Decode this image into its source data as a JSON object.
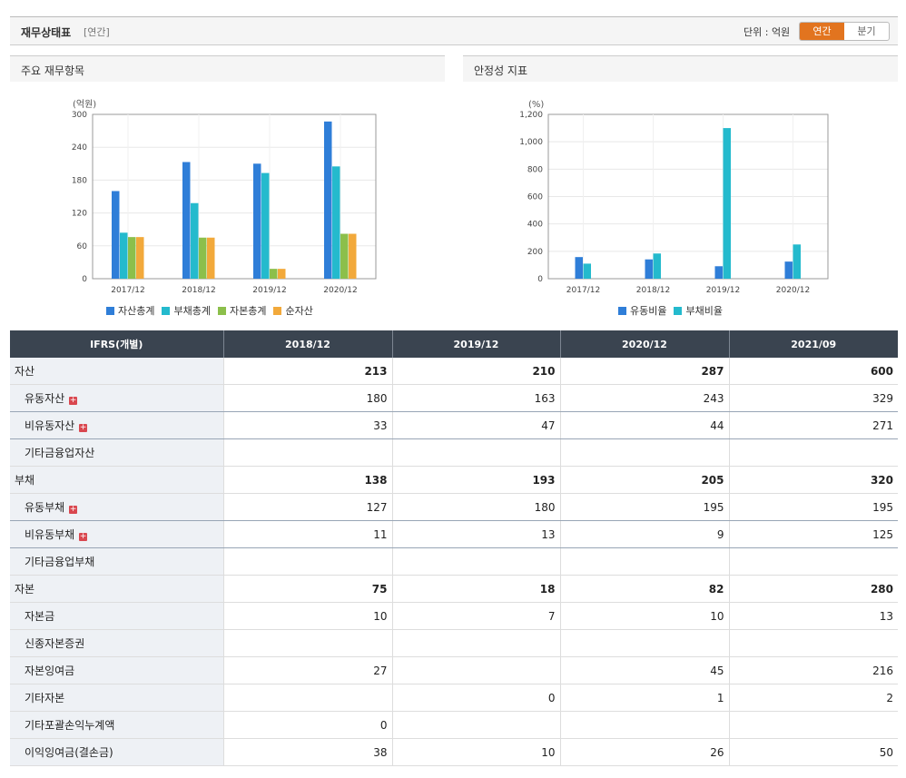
{
  "header": {
    "title": "재무상태표",
    "period": "[연간]",
    "unit_label": "단위 : 억원",
    "toggle_annual": "연간",
    "toggle_quarter": "분기"
  },
  "left_panel": {
    "title": "주요 재무항목"
  },
  "right_panel": {
    "title": "안정성 지표"
  },
  "colors": {
    "blue": "#2f7ed8",
    "cyan": "#24bacd",
    "green": "#8cbf4b",
    "orange": "#f2a93b"
  },
  "chart_data": [
    {
      "type": "bar",
      "unit_label": "(억원)",
      "categories": [
        "2017/12",
        "2018/12",
        "2019/12",
        "2020/12"
      ],
      "ylim": [
        0,
        300
      ],
      "yticks": [
        0,
        60,
        120,
        180,
        240,
        300
      ],
      "grid": true,
      "legend_position": "bottom",
      "series": [
        {
          "name": "자산총계",
          "color": "#2f7ed8",
          "values": [
            160,
            213,
            210,
            287
          ]
        },
        {
          "name": "부채총계",
          "color": "#24bacd",
          "values": [
            84,
            138,
            193,
            205
          ]
        },
        {
          "name": "자본총계",
          "color": "#8cbf4b",
          "values": [
            76,
            75,
            18,
            82
          ]
        },
        {
          "name": "순자산",
          "color": "#f2a93b",
          "values": [
            76,
            75,
            18,
            82
          ]
        }
      ]
    },
    {
      "type": "bar",
      "unit_label": "(%)",
      "categories": [
        "2017/12",
        "2018/12",
        "2019/12",
        "2020/12"
      ],
      "ylim": [
        0,
        1200
      ],
      "yticks": [
        0,
        200,
        400,
        600,
        800,
        1000,
        1200
      ],
      "ytick_labels": [
        "0",
        "200",
        "400",
        "600",
        "800",
        "1,000",
        "1,200"
      ],
      "grid": true,
      "legend_position": "bottom",
      "series": [
        {
          "name": "유동비율",
          "color": "#2f7ed8",
          "values": [
            158,
            141,
            91,
            125
          ]
        },
        {
          "name": "부채비율",
          "color": "#24bacd",
          "values": [
            110,
            184,
            1100,
            250
          ]
        }
      ]
    }
  ],
  "table": {
    "header": [
      "IFRS(개별)",
      "2018/12",
      "2019/12",
      "2020/12",
      "2021/09"
    ],
    "rows": [
      {
        "label": "자산",
        "type": "main",
        "values": [
          "213",
          "210",
          "287",
          "600"
        ]
      },
      {
        "label": "유동자산",
        "type": "sub",
        "expandable": true,
        "values": [
          "180",
          "163",
          "243",
          "329"
        ]
      },
      {
        "label": "비유동자산",
        "type": "sub",
        "expandable": true,
        "values": [
          "33",
          "47",
          "44",
          "271"
        ]
      },
      {
        "label": "기타금융업자산",
        "type": "sub",
        "values": [
          "",
          "",
          "",
          ""
        ]
      },
      {
        "label": "부채",
        "type": "main",
        "values": [
          "138",
          "193",
          "205",
          "320"
        ]
      },
      {
        "label": "유동부채",
        "type": "sub",
        "expandable": true,
        "values": [
          "127",
          "180",
          "195",
          "195"
        ]
      },
      {
        "label": "비유동부채",
        "type": "sub",
        "expandable": true,
        "values": [
          "11",
          "13",
          "9",
          "125"
        ]
      },
      {
        "label": "기타금융업부채",
        "type": "sub",
        "values": [
          "",
          "",
          "",
          ""
        ]
      },
      {
        "label": "자본",
        "type": "main",
        "values": [
          "75",
          "18",
          "82",
          "280"
        ]
      },
      {
        "label": "자본금",
        "type": "sub",
        "values": [
          "10",
          "7",
          "10",
          "13"
        ]
      },
      {
        "label": "신종자본증권",
        "type": "sub",
        "values": [
          "",
          "",
          "",
          ""
        ]
      },
      {
        "label": "자본잉여금",
        "type": "sub",
        "values": [
          "27",
          "",
          "45",
          "216"
        ]
      },
      {
        "label": "기타자본",
        "type": "sub",
        "values": [
          "",
          "0",
          "1",
          "2"
        ]
      },
      {
        "label": "기타포괄손익누계액",
        "type": "sub",
        "values": [
          "0",
          "",
          "",
          ""
        ]
      },
      {
        "label": "이익잉여금(결손금)",
        "type": "sub",
        "values": [
          "38",
          "10",
          "26",
          "50"
        ]
      }
    ]
  }
}
